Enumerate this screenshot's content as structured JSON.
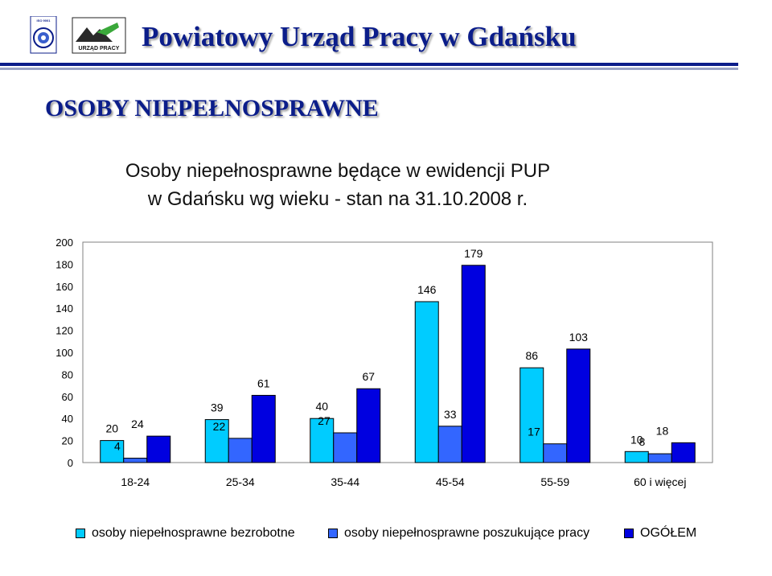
{
  "header": {
    "title": "Powiatowy Urząd Pracy w Gdańsku",
    "logo_iso_text": "ISO 9001",
    "logo_urzad_text": "URZĄD PRACY"
  },
  "section_title": "OSOBY NIEPEŁNOSPRAWNE",
  "chart_data": {
    "type": "bar",
    "title": "Osoby niepełnosprawne będące w ewidencji PUP",
    "subtitle": "w Gdańsku wg wieku - stan na 31.10.2008 r.",
    "categories": [
      "18-24",
      "25-34",
      "35-44",
      "45-54",
      "55-59",
      "60 i więcej"
    ],
    "series": [
      {
        "name": "osoby niepełnosprawne bezrobotne",
        "color": "#00ccff",
        "values": [
          20,
          39,
          40,
          146,
          86,
          10
        ]
      },
      {
        "name": "osoby niepełnosprawne poszukujące pracy",
        "color": "#3366ff",
        "values": [
          4,
          22,
          27,
          33,
          17,
          8
        ]
      },
      {
        "name": "OGÓŁEM",
        "color": "#0000e0",
        "values": [
          24,
          61,
          67,
          179,
          103,
          18
        ]
      }
    ],
    "ylim": [
      0,
      200
    ],
    "yticks": [
      "0",
      "20",
      "40",
      "60",
      "80",
      "100",
      "120",
      "140",
      "160",
      "180",
      "200"
    ],
    "grid": false,
    "legend_position": "bottom",
    "plot_background": "#ffffff"
  }
}
